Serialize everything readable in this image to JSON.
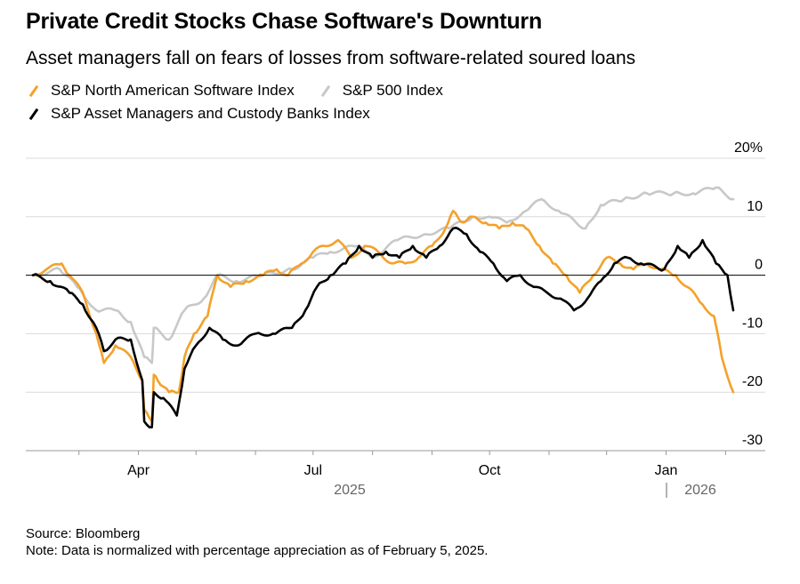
{
  "header": {
    "title": "Private Credit Stocks Chase Software's Downturn",
    "subtitle": "Asset managers fall on fears of losses from software-related soured loans"
  },
  "chart_data": {
    "type": "line",
    "title": "Private Credit Stocks Chase Software's Downturn",
    "subtitle": "Asset managers fall on fears of losses from software-related soured loans",
    "xlabel": "",
    "ylabel": "",
    "ylim": [
      -30,
      20
    ],
    "x_range": [
      "2025-02-05",
      "2026-02-05"
    ],
    "y_ticks": [
      20,
      10,
      0,
      -10,
      -20,
      -30
    ],
    "y_tick_labels": [
      "20%",
      "10",
      "0",
      "-10",
      "-20",
      "-30"
    ],
    "x_tick_labels": [
      "Apr",
      "Jul",
      "Oct",
      "Jan"
    ],
    "year_labels": [
      "2025",
      "2026"
    ],
    "grid": true,
    "legend_position": "top-left",
    "series": [
      {
        "name": "S&P North American Software Index",
        "color": "#f4a12a",
        "points": [
          [
            "2025-02-05",
            0
          ],
          [
            "2025-02-12",
            1
          ],
          [
            "2025-02-20",
            2
          ],
          [
            "2025-02-24",
            0
          ],
          [
            "2025-03-03",
            -3
          ],
          [
            "2025-03-10",
            -10
          ],
          [
            "2025-03-14",
            -15
          ],
          [
            "2025-03-20",
            -12
          ],
          [
            "2025-03-28",
            -14
          ],
          [
            "2025-04-03",
            -18
          ],
          [
            "2025-04-04",
            -23
          ],
          [
            "2025-04-08",
            -25
          ],
          [
            "2025-04-09",
            -17
          ],
          [
            "2025-04-11",
            -18
          ],
          [
            "2025-04-17",
            -20
          ],
          [
            "2025-04-22",
            -20
          ],
          [
            "2025-04-25",
            -14
          ],
          [
            "2025-04-30",
            -10
          ],
          [
            "2025-05-07",
            -7
          ],
          [
            "2025-05-12",
            0
          ],
          [
            "2025-05-19",
            -2
          ],
          [
            "2025-05-27",
            -1
          ],
          [
            "2025-06-05",
            0
          ],
          [
            "2025-06-12",
            1
          ],
          [
            "2025-06-18",
            0
          ],
          [
            "2025-06-25",
            2
          ],
          [
            "2025-07-01",
            4
          ],
          [
            "2025-07-07",
            5
          ],
          [
            "2025-07-14",
            6
          ],
          [
            "2025-07-21",
            3
          ],
          [
            "2025-07-28",
            5
          ],
          [
            "2025-08-04",
            4
          ],
          [
            "2025-08-11",
            2
          ],
          [
            "2025-08-18",
            2
          ],
          [
            "2025-08-25",
            3
          ],
          [
            "2025-09-01",
            5
          ],
          [
            "2025-09-08",
            8
          ],
          [
            "2025-09-12",
            11
          ],
          [
            "2025-09-17",
            9
          ],
          [
            "2025-09-22",
            10
          ],
          [
            "2025-09-29",
            9
          ],
          [
            "2025-10-06",
            8
          ],
          [
            "2025-10-13",
            9
          ],
          [
            "2025-10-20",
            8
          ],
          [
            "2025-10-27",
            5
          ],
          [
            "2025-11-03",
            2
          ],
          [
            "2025-11-10",
            0
          ],
          [
            "2025-11-17",
            -3
          ],
          [
            "2025-11-24",
            0
          ],
          [
            "2025-12-01",
            3
          ],
          [
            "2025-12-08",
            2
          ],
          [
            "2025-12-15",
            1
          ],
          [
            "2025-12-22",
            2
          ],
          [
            "2025-12-29",
            1
          ],
          [
            "2026-01-06",
            0
          ],
          [
            "2026-01-12",
            -2
          ],
          [
            "2026-01-20",
            -5
          ],
          [
            "2026-01-26",
            -7
          ],
          [
            "2026-01-30",
            -14
          ],
          [
            "2026-02-05",
            -20
          ]
        ]
      },
      {
        "name": "S&P 500 Index",
        "color": "#c8c8c8",
        "points": [
          [
            "2025-02-05",
            0
          ],
          [
            "2025-02-19",
            1
          ],
          [
            "2025-02-28",
            -2
          ],
          [
            "2025-03-10",
            -6
          ],
          [
            "2025-03-20",
            -6
          ],
          [
            "2025-03-28",
            -8
          ],
          [
            "2025-04-04",
            -14
          ],
          [
            "2025-04-08",
            -15
          ],
          [
            "2025-04-09",
            -9
          ],
          [
            "2025-04-17",
            -11
          ],
          [
            "2025-04-25",
            -6
          ],
          [
            "2025-05-05",
            -4
          ],
          [
            "2025-05-12",
            0
          ],
          [
            "2025-05-22",
            -1
          ],
          [
            "2025-06-05",
            0
          ],
          [
            "2025-06-20",
            1
          ],
          [
            "2025-07-01",
            3
          ],
          [
            "2025-07-10",
            4
          ],
          [
            "2025-07-24",
            5
          ],
          [
            "2025-08-01",
            3
          ],
          [
            "2025-08-14",
            6
          ],
          [
            "2025-08-28",
            7
          ],
          [
            "2025-09-10",
            8
          ],
          [
            "2025-09-22",
            10
          ],
          [
            "2025-10-01",
            10
          ],
          [
            "2025-10-10",
            9
          ],
          [
            "2025-10-20",
            11
          ],
          [
            "2025-10-28",
            13
          ],
          [
            "2025-11-06",
            11
          ],
          [
            "2025-11-20",
            8
          ],
          [
            "2025-11-28",
            12
          ],
          [
            "2025-12-10",
            13
          ],
          [
            "2025-12-22",
            14
          ],
          [
            "2026-01-05",
            14
          ],
          [
            "2026-01-15",
            14
          ],
          [
            "2026-01-27",
            15
          ],
          [
            "2026-02-05",
            13
          ]
        ]
      },
      {
        "name": "S&P Asset Managers and Custody Banks Index",
        "color": "#000000",
        "points": [
          [
            "2025-02-05",
            0
          ],
          [
            "2025-02-14",
            -1
          ],
          [
            "2025-02-24",
            -3
          ],
          [
            "2025-03-03",
            -5
          ],
          [
            "2025-03-10",
            -9
          ],
          [
            "2025-03-14",
            -13
          ],
          [
            "2025-03-20",
            -11
          ],
          [
            "2025-03-28",
            -11
          ],
          [
            "2025-04-03",
            -18
          ],
          [
            "2025-04-04",
            -25
          ],
          [
            "2025-04-08",
            -26
          ],
          [
            "2025-04-09",
            -20
          ],
          [
            "2025-04-14",
            -21
          ],
          [
            "2025-04-21",
            -24
          ],
          [
            "2025-04-25",
            -16
          ],
          [
            "2025-05-01",
            -12
          ],
          [
            "2025-05-08",
            -9
          ],
          [
            "2025-05-15",
            -11
          ],
          [
            "2025-05-23",
            -12
          ],
          [
            "2025-06-01",
            -10
          ],
          [
            "2025-06-10",
            -10
          ],
          [
            "2025-06-20",
            -9
          ],
          [
            "2025-06-27",
            -6
          ],
          [
            "2025-07-03",
            -2
          ],
          [
            "2025-07-10",
            0
          ],
          [
            "2025-07-18",
            2
          ],
          [
            "2025-07-25",
            5
          ],
          [
            "2025-08-01",
            3
          ],
          [
            "2025-08-08",
            4
          ],
          [
            "2025-08-15",
            3
          ],
          [
            "2025-08-22",
            5
          ],
          [
            "2025-08-29",
            3
          ],
          [
            "2025-09-05",
            5
          ],
          [
            "2025-09-12",
            8
          ],
          [
            "2025-09-19",
            7
          ],
          [
            "2025-09-26",
            4
          ],
          [
            "2025-10-03",
            2
          ],
          [
            "2025-10-10",
            -1
          ],
          [
            "2025-10-17",
            0
          ],
          [
            "2025-10-24",
            -2
          ],
          [
            "2025-10-31",
            -3
          ],
          [
            "2025-11-07",
            -4
          ],
          [
            "2025-11-14",
            -6
          ],
          [
            "2025-11-21",
            -4
          ],
          [
            "2025-11-28",
            -1
          ],
          [
            "2025-12-05",
            2
          ],
          [
            "2025-12-12",
            3
          ],
          [
            "2025-12-19",
            2
          ],
          [
            "2025-12-31",
            1
          ],
          [
            "2026-01-07",
            5
          ],
          [
            "2026-01-13",
            3
          ],
          [
            "2026-01-20",
            6
          ],
          [
            "2026-01-27",
            2
          ],
          [
            "2026-02-02",
            0
          ],
          [
            "2026-02-05",
            -6
          ]
        ]
      }
    ],
    "source": "Source: Bloomberg",
    "note": "Note: Data is normalized with percentage appreciation as of February 5, 2025."
  },
  "colors": {
    "software": "#f4a12a",
    "sp500": "#c8c8c8",
    "asset_managers": "#000000",
    "grid": "#dadada",
    "zero_line": "#000000",
    "year_label": "#666666"
  }
}
